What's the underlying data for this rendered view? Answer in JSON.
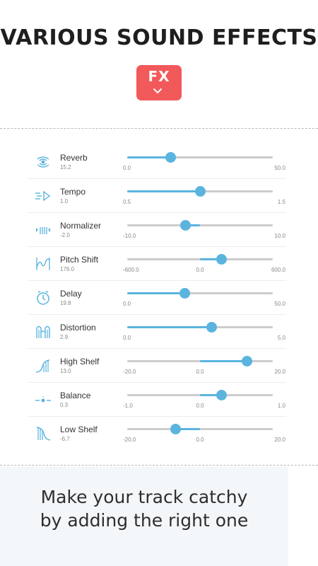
{
  "header": {
    "title": "VARIOUS SOUND EFFECTS",
    "badge_label": "FX"
  },
  "colors": {
    "accent": "#5ab4de",
    "badge": "#f2595a",
    "track": "#cccccc"
  },
  "effects": [
    {
      "name": "Reverb",
      "value": "15.2",
      "min": "0.0",
      "mid": "",
      "max": "50.0",
      "level": 0.3,
      "bipolar": false,
      "icon": "reverb-icon"
    },
    {
      "name": "Tempo",
      "value": "1.0",
      "min": "0.5",
      "mid": "",
      "max": "1.5",
      "level": 0.5,
      "bipolar": false,
      "icon": "tempo-icon"
    },
    {
      "name": "Normalizer",
      "value": "-2.0",
      "min": "-10.0",
      "mid": "",
      "max": "10.0",
      "level": 0.4,
      "bipolar": true,
      "icon": "normalizer-icon"
    },
    {
      "name": "Pitch Shift",
      "value": "176.0",
      "min": "-600.0",
      "mid": "0.0",
      "max": "600.0",
      "level": 0.647,
      "bipolar": true,
      "icon": "pitch-shift-icon"
    },
    {
      "name": "Delay",
      "value": "19.8",
      "min": "0.0",
      "mid": "",
      "max": "50.0",
      "level": 0.396,
      "bipolar": false,
      "icon": "delay-icon"
    },
    {
      "name": "Distortion",
      "value": "2.9",
      "min": "0.0",
      "mid": "",
      "max": "5.0",
      "level": 0.58,
      "bipolar": false,
      "icon": "distortion-icon"
    },
    {
      "name": "High Shelf",
      "value": "13.0",
      "min": "-20.0",
      "mid": "0.0",
      "max": "20.0",
      "level": 0.825,
      "bipolar": true,
      "icon": "high-shelf-icon"
    },
    {
      "name": "Balance",
      "value": "0.3",
      "min": "-1.0",
      "mid": "0.0",
      "max": "1.0",
      "level": 0.65,
      "bipolar": true,
      "icon": "balance-icon"
    },
    {
      "name": "Low Shelf",
      "value": "-6.7",
      "min": "-20.0",
      "mid": "0.0",
      "max": "20.0",
      "level": 0.3325,
      "bipolar": true,
      "icon": "low-shelf-icon"
    }
  ],
  "footer": {
    "line1": "Make your track catchy",
    "line2": "by adding the right one"
  }
}
